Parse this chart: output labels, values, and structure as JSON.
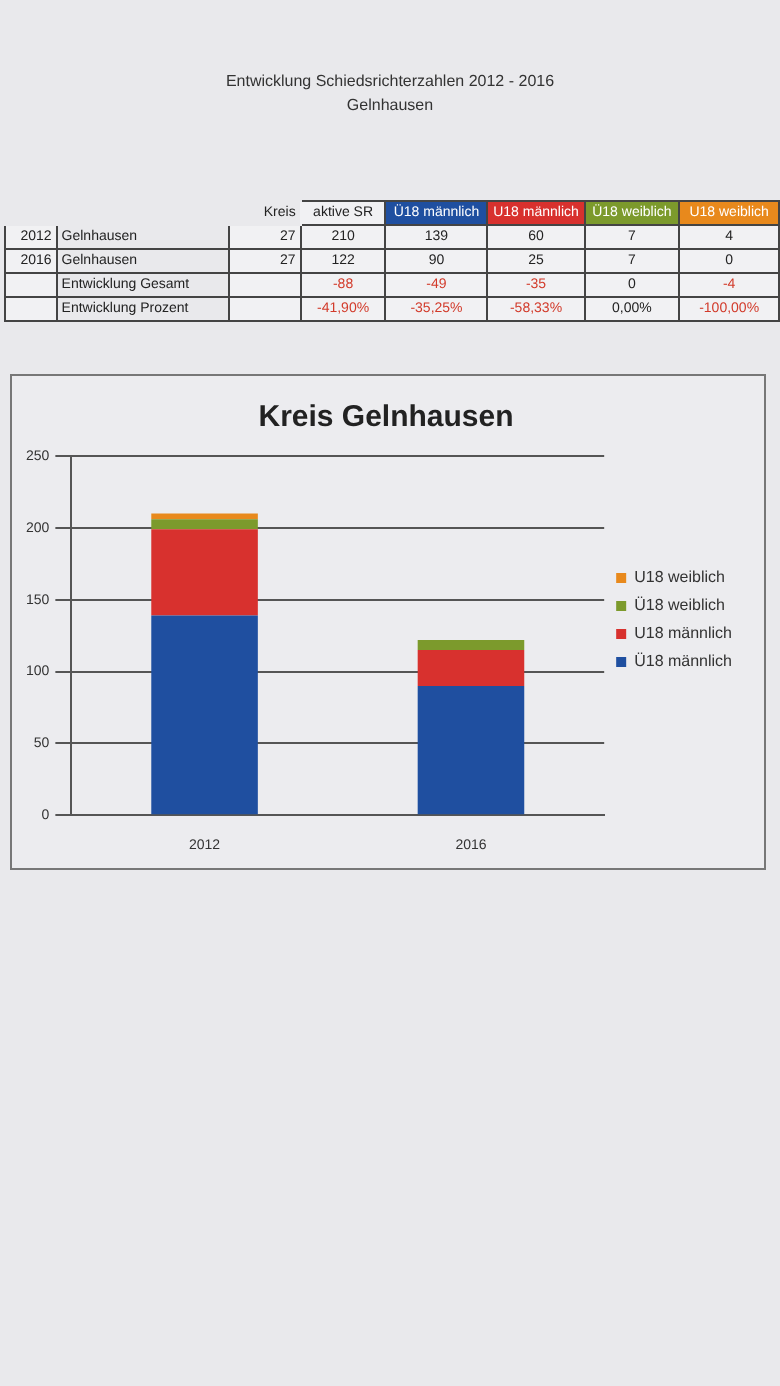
{
  "chart_data": [
    {
      "type": "heatmap",
      "title": "Entwicklung Schiedsrichterzahlen 2012 - 2016",
      "subtitle": "Gelnhausen",
      "categories": [
        null,
        "Kreis",
        "aktive SR",
        "Ü18 männlich",
        "U18 männlich",
        "Ü18 weiblich",
        "U18 weiblich"
      ],
      "y_categories": [
        "2012",
        "2016",
        null,
        null
      ],
      "cells": [
        [
          null,
          27,
          210,
          139,
          60,
          7,
          4
        ],
        [
          null,
          27,
          122,
          90,
          25,
          7,
          0
        ],
        [
          null,
          null,
          -88,
          -49,
          -35,
          0,
          -4
        ],
        [
          null,
          null,
          -41.9,
          -35.25,
          -58.33,
          0,
          -100
        ]
      ],
      "cell_labels": [
        [
          "Gelnhausen",
          "27",
          "210",
          "139",
          "60",
          "7",
          "4"
        ],
        [
          "Gelnhausen",
          "27",
          "122",
          "90",
          "25",
          "7",
          "0"
        ],
        [
          "Entwicklung Gesamt",
          null,
          "-88",
          "-49",
          "-35",
          "0",
          "-4"
        ],
        [
          "Entwicklung Prozent",
          null,
          "-41,90%",
          "-35,25%",
          "-58,33%",
          "0,00%",
          "-100,00%"
        ]
      ]
    },
    {
      "type": "bar",
      "title": "Kreis Gelnhausen",
      "stacked": true,
      "categories": [
        "2012",
        "2016"
      ],
      "series": [
        {
          "name": "Ü18 männlich",
          "color": "#1f4fa0",
          "values": [
            139,
            90
          ]
        },
        {
          "name": "U18 männlich",
          "color": "#d8312e",
          "values": [
            60,
            25
          ]
        },
        {
          "name": "Ü18 weiblich",
          "color": "#7c9a2c",
          "values": [
            7,
            7
          ]
        },
        {
          "name": "U18 weiblich",
          "color": "#e8891c",
          "values": [
            4,
            0
          ]
        }
      ],
      "ylim": [
        0,
        250
      ],
      "yticks": [
        0,
        50,
        100,
        150,
        200,
        250
      ],
      "grid": "y",
      "legend": "right"
    }
  ]
}
